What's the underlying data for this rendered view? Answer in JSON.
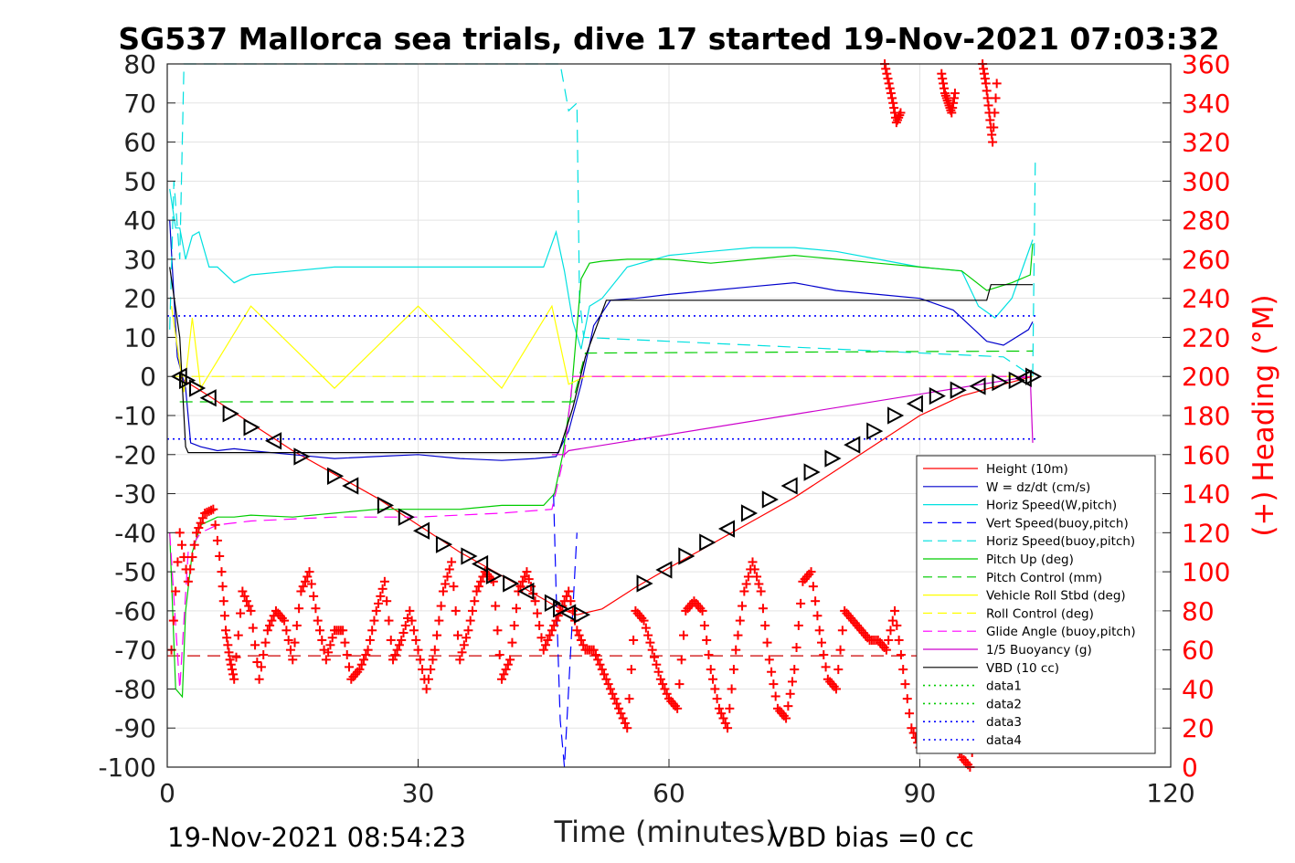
{
  "chart_data": {
    "type": "line",
    "title": "SG537 Mallorca sea trials, dive 17 started 19-Nov-2021 07:03:32",
    "xlabel": "Time (minutes)",
    "ylabel_right": "(+) Heading (°M)",
    "footer_left": "19-Nov-2021 08:54:23",
    "footer_right": "VBD bias =0 cc",
    "xlim": [
      0,
      120
    ],
    "ylim": [
      -100,
      80
    ],
    "ylim_right": [
      0,
      360
    ],
    "xticks": [
      "0",
      "30",
      "60",
      "90",
      "120"
    ],
    "yticks": [
      "80",
      "70",
      "60",
      "50",
      "40",
      "30",
      "20",
      "10",
      "0",
      "-10",
      "-20",
      "-30",
      "-40",
      "-50",
      "-60",
      "-70",
      "-80",
      "-90",
      "-100"
    ],
    "yticks_right": [
      "360",
      "340",
      "320",
      "300",
      "280",
      "260",
      "240",
      "220",
      "200",
      "180",
      "160",
      "140",
      "120",
      "100",
      "80",
      "60",
      "40",
      "20",
      "0"
    ],
    "grid": true,
    "legend_position": "bottom-right",
    "series": [
      {
        "name": "Height (10m)",
        "color": "#ff0000",
        "style": "solid",
        "x": [
          1.5,
          2,
          5,
          10,
          15,
          20,
          25,
          30,
          35,
          40,
          45,
          47,
          49,
          52,
          56,
          60,
          65,
          70,
          75,
          80,
          85,
          90,
          95,
          100,
          103.5
        ],
        "y": [
          0,
          -1,
          -5,
          -12,
          -19,
          -25,
          -31,
          -38,
          -45,
          -51,
          -57,
          -59.5,
          -61,
          -59.5,
          -54,
          -49,
          -43,
          -37,
          -31,
          -24,
          -17,
          -10,
          -5,
          -2,
          0
        ]
      },
      {
        "name": "W = dz/dt (cm/s)",
        "color": "#0000cc",
        "style": "solid",
        "x": [
          0.3,
          1.2,
          2.2,
          2.8,
          4,
          6,
          8,
          10,
          15,
          20,
          25,
          30,
          35,
          40,
          44,
          46.5,
          48,
          49.5,
          51,
          53,
          56,
          60,
          65,
          70,
          75,
          80,
          85,
          90,
          94,
          96,
          98,
          100,
          103,
          103.5
        ],
        "y": [
          40,
          5,
          -3,
          -17,
          -18,
          -19,
          -18.5,
          -19,
          -20,
          -21,
          -20.5,
          -20,
          -21,
          -21.5,
          -21,
          -20.5,
          -14,
          -2,
          13,
          19.5,
          20,
          21,
          22,
          23,
          24,
          22,
          21,
          20,
          17,
          13,
          9,
          8,
          12,
          14
        ]
      },
      {
        "name": "Horiz Speed(W,pitch)",
        "color": "#00e0e0",
        "style": "solid",
        "x": [
          0.3,
          1,
          1.5,
          2.2,
          3,
          3.8,
          5,
          6,
          8,
          10,
          15,
          20,
          25,
          30,
          35,
          40,
          45,
          46.5,
          47.5,
          48.5,
          49.5,
          50.5,
          52,
          55,
          60,
          65,
          70,
          75,
          80,
          85,
          90,
          95,
          97,
          99,
          101,
          103.5
        ],
        "y": [
          48,
          38,
          38,
          30,
          36,
          37,
          28,
          28,
          24,
          26,
          27,
          28,
          28,
          28,
          28,
          28,
          28,
          37,
          27,
          14,
          7,
          18,
          20,
          28,
          31,
          32,
          33,
          33,
          32,
          30,
          28,
          27,
          18,
          15,
          20,
          35
        ]
      },
      {
        "name": "Vert Speed(buoy,pitch)",
        "color": "#0000ff",
        "style": "dash",
        "x": [
          46.2,
          46.5,
          47,
          47.5,
          48,
          49
        ],
        "y": [
          -30,
          -55,
          -88,
          -100,
          -80,
          -40
        ]
      },
      {
        "name": "Horiz Speed(buoy,pitch)",
        "color": "#00e0e0",
        "style": "dash",
        "x": [
          0.3,
          0.8,
          1.5,
          2,
          2.2,
          46.3,
          47,
          48,
          49,
          49.3,
          49.8,
          100,
          103.5,
          103.8
        ],
        "y": [
          12,
          50,
          30,
          80,
          80,
          80,
          80,
          68,
          70,
          20,
          10,
          5,
          0,
          55
        ]
      },
      {
        "name": "Pitch Up (deg)",
        "color": "#00cc00",
        "style": "solid",
        "x": [
          0.3,
          1,
          1.8,
          2.2,
          3,
          4,
          6,
          8,
          10,
          15,
          20,
          25,
          30,
          35,
          40,
          45,
          46.3,
          47.3,
          48.3,
          49.5,
          50.5,
          52,
          55,
          60,
          65,
          70,
          75,
          80,
          85,
          90,
          95,
          98,
          101,
          103.2,
          103.5
        ],
        "y": [
          -40,
          -80,
          -82,
          -60,
          -45,
          -38,
          -36,
          -36,
          -35.5,
          -36,
          -35,
          -34,
          -34,
          -34,
          -33,
          -33,
          -30,
          -20,
          -5,
          25,
          29,
          29.5,
          30,
          30,
          29,
          30,
          31,
          30,
          29,
          28,
          27,
          22,
          24,
          26,
          34
        ]
      },
      {
        "name": "Pitch Control (mm)",
        "color": "#00cc00",
        "style": "dash",
        "x": [
          1.5,
          48.5,
          50,
          103.5
        ],
        "y": [
          -6.5,
          -6.5,
          6,
          6.5
        ]
      },
      {
        "name": "Vehicle Roll Stbd (deg)",
        "color": "#ffff00",
        "style": "solid",
        "x": [
          0.5,
          2,
          3,
          4,
          10,
          20,
          30,
          40,
          46,
          48,
          50,
          60,
          70,
          80,
          90,
          100,
          103.5
        ],
        "y": [
          18,
          -4,
          15,
          -3,
          18,
          -3,
          18,
          -3,
          18,
          -2,
          0,
          0,
          0,
          0,
          0,
          0,
          0
        ]
      },
      {
        "name": "Roll Control (deg)",
        "color": "#ffff00",
        "style": "dash",
        "x": [
          0.5,
          103.5
        ],
        "y": [
          0,
          0
        ]
      },
      {
        "name": "Glide Angle (buoy,pitch)",
        "color": "#ff00ff",
        "style": "dash",
        "x": [
          0.3,
          1.5,
          2.5,
          4,
          6,
          10,
          20,
          30,
          40,
          46,
          47.5,
          48.5,
          49.5,
          103.5
        ],
        "y": [
          -40,
          -80,
          -45,
          -40,
          -38,
          -37,
          -36,
          -36,
          -35,
          -34,
          -20,
          0,
          0,
          0
        ]
      },
      {
        "name": "1/5 Buoyancy (g)",
        "color": "#cc00cc",
        "style": "solid",
        "x": [
          46,
          47.5,
          48,
          103.2,
          103.5
        ],
        "y": [
          -20,
          -20,
          -19,
          0,
          -17
        ]
      },
      {
        "name": "VBD (10 cc)",
        "color": "#000000",
        "style": "solid",
        "x": [
          0.3,
          1.5,
          2.2,
          2.5,
          46.8,
          48.5,
          50,
          52.5,
          98,
          98.5,
          103.5
        ],
        "y": [
          28,
          10,
          -18,
          -19.5,
          -19.5,
          -8,
          5,
          19.5,
          19.5,
          23.5,
          23.5
        ]
      },
      {
        "name": "data1",
        "color": "#00cc00",
        "style": "dot",
        "x": [],
        "y": []
      },
      {
        "name": "data2",
        "color": "#00cc00",
        "style": "dot",
        "x": [],
        "y": []
      },
      {
        "name": "data3",
        "color": "#0000ff",
        "style": "dot",
        "x": [
          0,
          104
        ],
        "y": [
          -16,
          -16
        ]
      },
      {
        "name": "data4",
        "color": "#0000ff",
        "style": "dot",
        "x": [
          0,
          104
        ],
        "y": [
          15.5,
          15.5
        ]
      }
    ],
    "extra_lines": [
      {
        "color": "#cc0000",
        "style": "dash",
        "x": [
          0,
          104
        ],
        "y": [
          -71.5,
          -71.5
        ]
      }
    ],
    "heading": {
      "name": "(+) Heading (°M)",
      "color": "#ff0000",
      "marker": "+",
      "x": [
        0.5,
        1.5,
        2.5,
        3.5,
        4.5,
        5.5,
        6.5,
        7,
        7.5,
        8,
        9,
        10,
        11,
        12,
        13,
        14,
        15,
        16,
        17,
        18,
        19,
        20,
        21,
        22,
        23,
        24,
        25,
        26,
        27,
        28,
        29,
        30,
        31,
        32,
        33,
        34,
        35,
        36,
        37,
        38,
        39,
        40,
        41,
        42,
        43,
        44,
        45,
        46,
        47,
        48,
        49,
        50,
        51,
        52,
        53,
        54,
        55,
        56,
        57,
        58,
        59,
        60,
        61,
        62,
        63,
        64,
        65,
        66,
        67,
        68,
        69,
        70,
        71,
        72,
        73,
        74,
        75,
        76,
        77,
        78,
        79,
        80,
        81,
        82,
        83,
        84,
        85,
        86,
        87,
        88,
        89,
        90,
        91,
        92,
        93,
        94,
        95,
        96,
        97,
        98,
        99,
        100,
        101,
        102
      ],
      "y": [
        60,
        120,
        95,
        120,
        130,
        132,
        100,
        70,
        55,
        45,
        90,
        80,
        45,
        70,
        80,
        75,
        55,
        90,
        100,
        75,
        55,
        70,
        70,
        45,
        50,
        60,
        80,
        95,
        55,
        65,
        80,
        60,
        40,
        60,
        90,
        105,
        55,
        70,
        90,
        100,
        95,
        45,
        55,
        90,
        100,
        85,
        60,
        70,
        80,
        90,
        70,
        60,
        60,
        50,
        40,
        30,
        20,
        80,
        75,
        60,
        45,
        35,
        30,
        80,
        85,
        80,
        50,
        30,
        20,
        60,
        90,
        105,
        90,
        55,
        30,
        25,
        50,
        95,
        100,
        70,
        45,
        40,
        80,
        75,
        70,
        65,
        65,
        60,
        80,
        50,
        20,
        10,
        80,
        90,
        100,
        15,
        5,
        0,
        30,
        50,
        65,
        80,
        95,
        105
      ]
    },
    "heading_wrap": {
      "color": "#ff0000",
      "marker": "+",
      "x": [
        85.8,
        86.3,
        86.8,
        87.2,
        87.7,
        92.6,
        93,
        93.4,
        93.8,
        94.2,
        97.5,
        97.9,
        98.3,
        98.7,
        99.2
      ],
      "y": [
        360,
        350,
        340,
        330,
        335,
        355,
        345,
        340,
        335,
        345,
        360,
        350,
        335,
        320,
        350
      ]
    },
    "triangles": {
      "color": "#000000",
      "x": [
        1.5,
        2.3,
        3.5,
        5,
        7.5,
        10,
        12.8,
        16,
        20,
        22,
        26,
        28.5,
        30.5,
        33,
        36,
        37.5,
        39,
        41,
        43,
        46,
        47,
        48,
        49.5,
        57,
        59.5,
        62,
        64.5,
        67,
        69.5,
        72,
        74.5,
        77,
        79.5,
        82,
        84.5,
        87,
        89.5,
        92,
        94.5,
        97,
        99.5,
        101.5,
        102.5,
        103.5
      ],
      "y": [
        0,
        -1,
        -3,
        -5.5,
        -9.5,
        -13,
        -16.5,
        -20.5,
        -25.5,
        -28,
        -33,
        -36,
        -39.5,
        -43,
        -46,
        -48,
        -51,
        -53,
        -55,
        -58,
        -59.5,
        -60.5,
        -61,
        -53,
        -49.5,
        -46,
        -42.5,
        -39,
        -35,
        -31.5,
        -28,
        -24.5,
        -21,
        -17.5,
        -14,
        -10,
        -7,
        -5,
        -3.5,
        -2.5,
        -1.5,
        -1,
        -0.5,
        0
      ]
    }
  }
}
